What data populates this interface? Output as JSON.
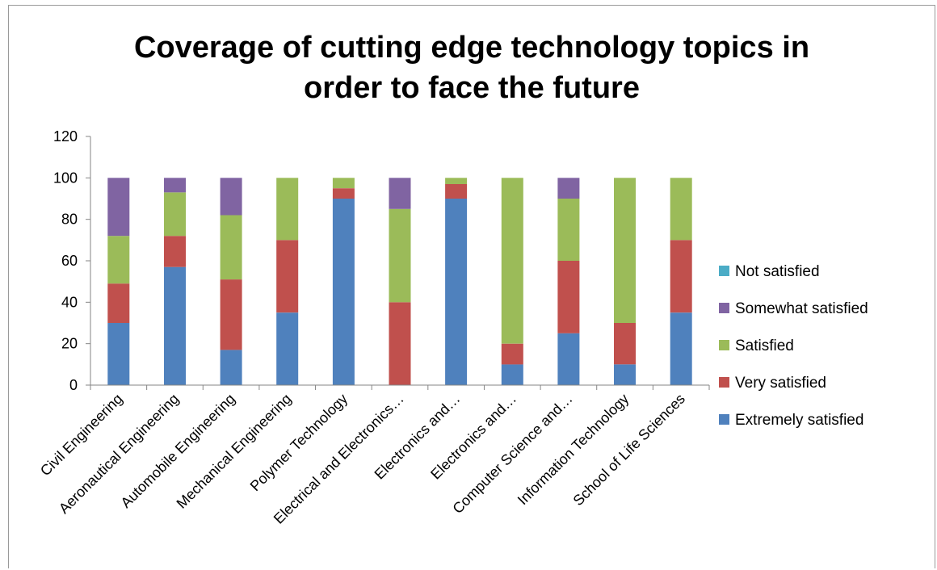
{
  "chart_data": {
    "type": "bar",
    "stacked": true,
    "title": "Coverage of cutting edge technology topics in\norder to face the future",
    "xlabel": "",
    "ylabel": "",
    "ylim": [
      0,
      120
    ],
    "yticks": [
      0,
      20,
      40,
      60,
      80,
      100,
      120
    ],
    "grid": false,
    "legend_position": "right",
    "categories": [
      "Civil Engineering",
      "Aeronautical Engineering",
      "Automobile Engineering",
      "Mechanical Engineering",
      "Polymer Technology",
      "Electrical and Electronics…",
      "Electronics and…",
      "Electronics and…",
      "Computer Science and…",
      "Information Technology",
      "School of Life Sciences"
    ],
    "series": [
      {
        "name": "Extremely satisfied",
        "color": "#4F81BD",
        "values": [
          30,
          57,
          17,
          35,
          90,
          0,
          90,
          10,
          25,
          10,
          35
        ]
      },
      {
        "name": "Very satisfied",
        "color": "#C0504D",
        "values": [
          19,
          15,
          34,
          35,
          5,
          40,
          7,
          10,
          35,
          20,
          35
        ]
      },
      {
        "name": "Satisfied",
        "color": "#9BBB59",
        "values": [
          23,
          21,
          31,
          30,
          5,
          45,
          3,
          80,
          30,
          70,
          30
        ]
      },
      {
        "name": "Somewhat satisfied",
        "color": "#8064A2",
        "values": [
          28,
          7,
          18,
          0,
          0,
          15,
          0,
          0,
          10,
          0,
          0
        ]
      },
      {
        "name": "Not satisfied",
        "color": "#4BACC6",
        "values": [
          0,
          0,
          0,
          0,
          0,
          0,
          0,
          0,
          0,
          0,
          0
        ]
      }
    ],
    "legend_order": [
      "Not satisfied",
      "Somewhat satisfied",
      "Satisfied",
      "Very satisfied",
      "Extremely satisfied"
    ]
  }
}
